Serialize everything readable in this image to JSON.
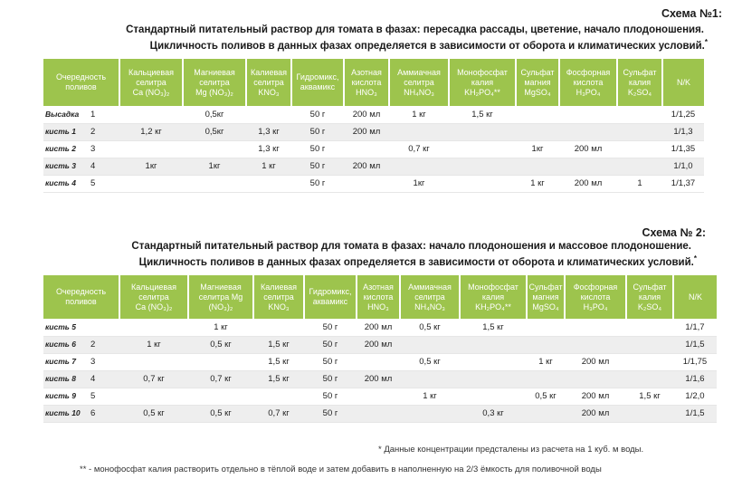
{
  "scheme1": {
    "label": "Схема  №1:",
    "title_line1": "Стандартный питательный раствор для томата в фазах:  пересадка рассады, цветение, начало плодоношения.",
    "title_line2": "Цикличность поливов в данных фазах определяется в зависимости от оборота и климатических условий.",
    "title_mark": "*",
    "headers": [
      [
        "Очередность",
        "поливов"
      ],
      [
        "Кальциевая",
        "селитра",
        "Ca (NO₃)₂"
      ],
      [
        "Магниевая",
        "селитра",
        "Mg (NO₃)₂"
      ],
      [
        "Калиевая",
        "селитра",
        "KNO₃"
      ],
      [
        "Гидромикс,",
        "аквамикс"
      ],
      [
        "Азотная",
        "кислота",
        "HNO₃"
      ],
      [
        "Аммиачная",
        "селитра",
        "NH₄NO₃"
      ],
      [
        "Монофосфат",
        "калия",
        "KH₂PO₄**"
      ],
      [
        "Сульфат",
        "магния",
        "MgSO₄"
      ],
      [
        "Фосфорная",
        "кислота",
        "H₃PO₄"
      ],
      [
        "Сульфат",
        "калия",
        "K₂SO₄"
      ],
      [
        "N/K"
      ]
    ],
    "rows": [
      {
        "stage": "Высадка",
        "num": "1",
        "cells": [
          "",
          "0,5кг",
          "",
          "50 г",
          "200 мл",
          "1 кг",
          "1,5 кг",
          "",
          "",
          "",
          "1/1,25"
        ]
      },
      {
        "stage": "кисть 1",
        "num": "2",
        "cells": [
          "1,2 кг",
          "0,5кг",
          "1,3 кг",
          "50 г",
          "200 мл",
          "",
          "",
          "",
          "",
          "",
          "1/1,3"
        ]
      },
      {
        "stage": "кисть 2",
        "num": "3",
        "cells": [
          "",
          "",
          "1,3 кг",
          "50 г",
          "",
          "0,7 кг",
          "",
          "1кг",
          "200 мл",
          "",
          "1/1,35"
        ]
      },
      {
        "stage": "кисть 3",
        "num": "4",
        "cells": [
          "1кг",
          "1кг",
          "1 кг",
          "50 г",
          "200 мл",
          "",
          "",
          "",
          "",
          "",
          "1/1,0"
        ]
      },
      {
        "stage": "кисть 4",
        "num": "5",
        "cells": [
          "",
          "",
          "",
          "50 г",
          "",
          "1кг",
          "",
          "1 кг",
          "200 мл",
          "1",
          "1/1,37"
        ]
      }
    ]
  },
  "scheme2": {
    "label": "Схема № 2:",
    "title_line1": "Стандартный питательный раствор для томата в фазах:  начало плодоношения и массовое плодоношение.",
    "title_line2": "Цикличность поливов в данных фазах определяется в зависимости от оборота и климатических условий.",
    "title_mark": "*",
    "headers": [
      [
        "Очередность",
        "поливов"
      ],
      [
        "Кальциевая",
        "селитра",
        "Ca (NO₃)₂"
      ],
      [
        "Магниевая",
        "селитра Mg",
        "(NO₃)₂"
      ],
      [
        "Калиевая",
        "селитра",
        "KNO₃"
      ],
      [
        "Гидромикс,",
        "аквамикс"
      ],
      [
        "Азотная",
        "кислота",
        "HNO₃"
      ],
      [
        "Аммиачная",
        "селитра",
        "NH₄NO₃"
      ],
      [
        "Монофосфат",
        "калия",
        "KH₂PO₄**"
      ],
      [
        "Сульфат",
        "магния",
        "MgSO₄"
      ],
      [
        "Фосфорная",
        "кислота",
        "H₃PO₄"
      ],
      [
        "Сульфат",
        "калия",
        "K₂SO₄"
      ],
      [
        "N/K"
      ]
    ],
    "rows": [
      {
        "stage": "кисть 5",
        "num": "",
        "cells": [
          "",
          "1 кг",
          "",
          "50 г",
          "200 мл",
          "0,5 кг",
          "1,5 кг",
          "",
          "",
          "",
          "1/1,7"
        ]
      },
      {
        "stage": "кисть 6",
        "num": "2",
        "cells": [
          "1 кг",
          "0,5 кг",
          "1,5 кг",
          "50 г",
          "200 мл",
          "",
          "",
          "",
          "",
          "",
          "1/1,5"
        ]
      },
      {
        "stage": "кисть 7",
        "num": "3",
        "cells": [
          "",
          "",
          "1,5 кг",
          "50 г",
          "",
          "0,5 кг",
          "",
          "1 кг",
          "200 мл",
          "",
          "1/1,75"
        ]
      },
      {
        "stage": "кисть 8",
        "num": "4",
        "cells": [
          "0,7 кг",
          "0,7 кг",
          "1,5 кг",
          "50 г",
          "200 мл",
          "",
          "",
          "",
          "",
          "",
          "1/1,6"
        ]
      },
      {
        "stage": "кисть 9",
        "num": "5",
        "cells": [
          "",
          "",
          "",
          "50 г",
          "",
          "1 кг",
          "",
          "0,5 кг",
          "200 мл",
          "1,5 кг",
          "1/2,0"
        ]
      },
      {
        "stage": "кисть 10",
        "num": "6",
        "cells": [
          "0,5 кг",
          "0,5 кг",
          "0,7 кг",
          "50 г",
          "",
          "",
          "0,3 кг",
          "",
          "200 мл",
          "",
          "1/1,5"
        ]
      }
    ]
  },
  "footnotes": {
    "note1": "*  Данные концентрации предсталены из расчета на 1 куб. м воды.",
    "note2": "** - монофосфат калия растворить отдельно в тёплой воде и затем добавить в наполненную на 2/3 ёмкость для поливочной воды"
  },
  "colors": {
    "header_green": "#9dc44d",
    "row_alt": "#eeeeee"
  }
}
